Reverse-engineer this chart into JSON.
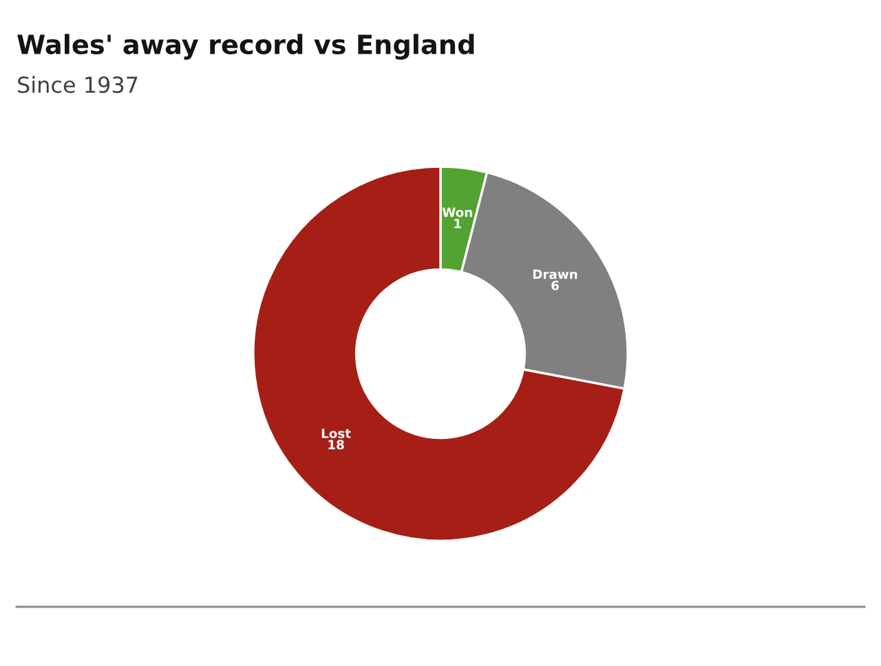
{
  "chart_data": {
    "type": "donut",
    "title": "Wales' away record vs England",
    "subtitle": "Since 1937",
    "categories": [
      "Won",
      "Drawn",
      "Lost"
    ],
    "values": [
      1,
      6,
      18
    ],
    "colors": [
      "#52a332",
      "#808080",
      "#a51f16"
    ],
    "data_labels": true
  }
}
